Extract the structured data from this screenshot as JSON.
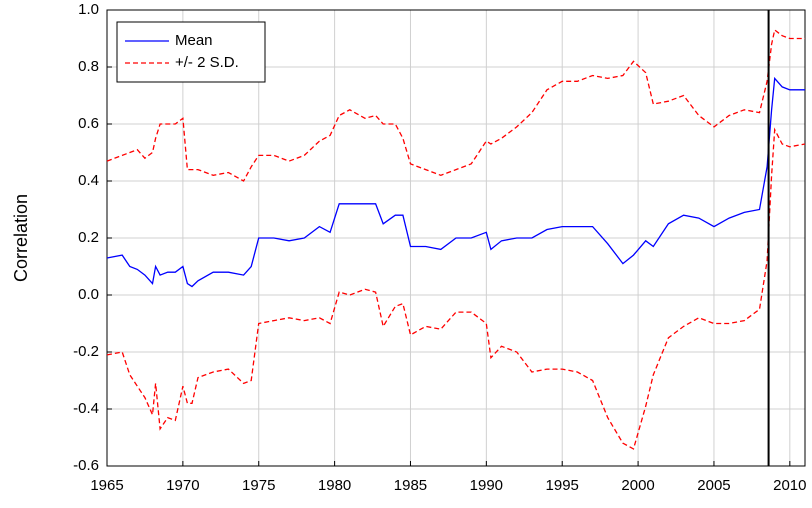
{
  "chart_data": {
    "type": "line",
    "ylabel": "Correlation",
    "x": [
      1965,
      1966,
      1966.5,
      1967,
      1967.5,
      1968,
      1968.2,
      1968.5,
      1969,
      1969.5,
      1970,
      1970.3,
      1970.6,
      1971,
      1972,
      1973,
      1974,
      1974.5,
      1975,
      1976,
      1977,
      1978,
      1979,
      1979.7,
      1980.3,
      1981,
      1982,
      1982.7,
      1983.2,
      1984,
      1984.5,
      1985,
      1986,
      1987,
      1988,
      1989,
      1990,
      1990.3,
      1991,
      1992,
      1993,
      1994,
      1995,
      1996,
      1997,
      1998,
      1999,
      1999.7,
      2000.5,
      2001,
      2002,
      2003,
      2004,
      2005,
      2006,
      2007,
      2008,
      2008.5,
      2008.8,
      2009,
      2009.5,
      2010,
      2011
    ],
    "series": [
      {
        "name": "Mean",
        "color": "#0000ff",
        "values": [
          0.13,
          0.14,
          0.1,
          0.09,
          0.07,
          0.04,
          0.1,
          0.07,
          0.08,
          0.08,
          0.1,
          0.04,
          0.03,
          0.05,
          0.08,
          0.08,
          0.07,
          0.1,
          0.2,
          0.2,
          0.19,
          0.2,
          0.24,
          0.22,
          0.32,
          0.32,
          0.32,
          0.32,
          0.25,
          0.28,
          0.28,
          0.17,
          0.17,
          0.16,
          0.2,
          0.2,
          0.22,
          0.16,
          0.19,
          0.2,
          0.2,
          0.23,
          0.24,
          0.24,
          0.24,
          0.18,
          0.11,
          0.14,
          0.19,
          0.17,
          0.25,
          0.28,
          0.27,
          0.24,
          0.27,
          0.29,
          0.3,
          0.45,
          0.65,
          0.76,
          0.73,
          0.72,
          0.72
        ]
      },
      {
        "name": "+/- 2 S.D.",
        "color": "#ff0000",
        "dashed": true,
        "upper": [
          0.47,
          0.49,
          0.5,
          0.51,
          0.48,
          0.5,
          0.55,
          0.6,
          0.6,
          0.6,
          0.62,
          0.44,
          0.44,
          0.44,
          0.42,
          0.43,
          0.4,
          0.45,
          0.49,
          0.49,
          0.47,
          0.49,
          0.54,
          0.56,
          0.63,
          0.65,
          0.62,
          0.63,
          0.6,
          0.6,
          0.55,
          0.46,
          0.44,
          0.42,
          0.44,
          0.46,
          0.54,
          0.53,
          0.55,
          0.59,
          0.64,
          0.72,
          0.75,
          0.75,
          0.77,
          0.76,
          0.77,
          0.82,
          0.78,
          0.67,
          0.68,
          0.7,
          0.63,
          0.59,
          0.63,
          0.65,
          0.64,
          0.75,
          0.88,
          0.93,
          0.91,
          0.9,
          0.9
        ],
        "lower": [
          -0.21,
          -0.2,
          -0.28,
          -0.32,
          -0.36,
          -0.42,
          -0.31,
          -0.47,
          -0.43,
          -0.44,
          -0.32,
          -0.38,
          -0.38,
          -0.29,
          -0.27,
          -0.26,
          -0.31,
          -0.3,
          -0.1,
          -0.09,
          -0.08,
          -0.09,
          -0.08,
          -0.1,
          0.01,
          0.0,
          0.02,
          0.01,
          -0.11,
          -0.04,
          -0.03,
          -0.14,
          -0.11,
          -0.12,
          -0.06,
          -0.06,
          -0.1,
          -0.22,
          -0.18,
          -0.2,
          -0.27,
          -0.26,
          -0.26,
          -0.27,
          -0.3,
          -0.43,
          -0.52,
          -0.54,
          -0.39,
          -0.28,
          -0.15,
          -0.11,
          -0.08,
          -0.1,
          -0.1,
          -0.09,
          -0.05,
          0.12,
          0.42,
          0.58,
          0.53,
          0.52,
          0.53
        ]
      }
    ],
    "vline": 2008.6,
    "xlim": [
      1965,
      2011
    ],
    "xticks": [
      1965,
      1970,
      1975,
      1980,
      1985,
      1990,
      1995,
      2000,
      2005,
      2010
    ],
    "ylim": [
      -0.6,
      1.0
    ],
    "yticks": [
      -0.6,
      -0.4,
      -0.2,
      {
        "value": 0,
        "label": "0.0"
      },
      0.2,
      0.4,
      0.6,
      0.8,
      {
        "value": 1,
        "label": "1.0"
      }
    ],
    "grid": true,
    "legend": "upper left"
  }
}
